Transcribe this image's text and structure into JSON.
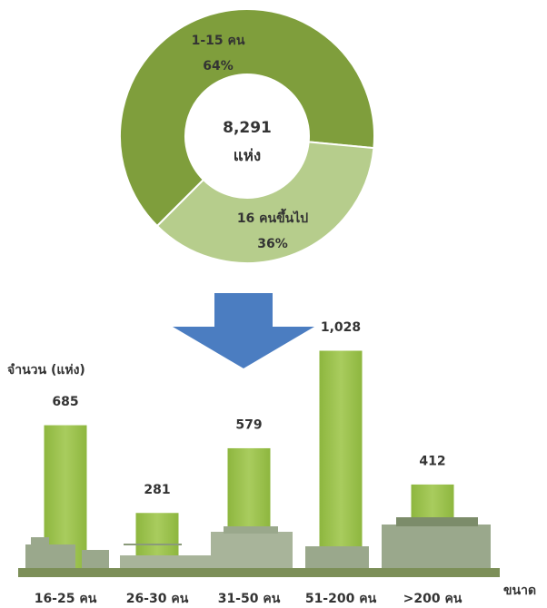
{
  "chart_data": [
    {
      "type": "donut",
      "categories": [
        "1-15 คน",
        "16 คนขึ้นไป"
      ],
      "values": [
        64,
        36
      ],
      "value_labels": [
        "64%",
        "36%"
      ],
      "colors": [
        "#7f9e3c",
        "#b6cd8c"
      ],
      "center_text": [
        "8,291",
        "แห่ง"
      ]
    },
    {
      "type": "bar",
      "y_label": "จำนวน (แห่ง)",
      "x_label": "ขนาด",
      "categories": [
        "16-25 คน",
        "26-30 คน",
        "31-50 คน",
        "51-200 คน",
        ">200 คน"
      ],
      "values": [
        685,
        281,
        579,
        1028,
        412
      ],
      "value_labels": [
        "685",
        "281",
        "579",
        "1,028",
        "412"
      ],
      "color": "#9dc24f"
    }
  ]
}
